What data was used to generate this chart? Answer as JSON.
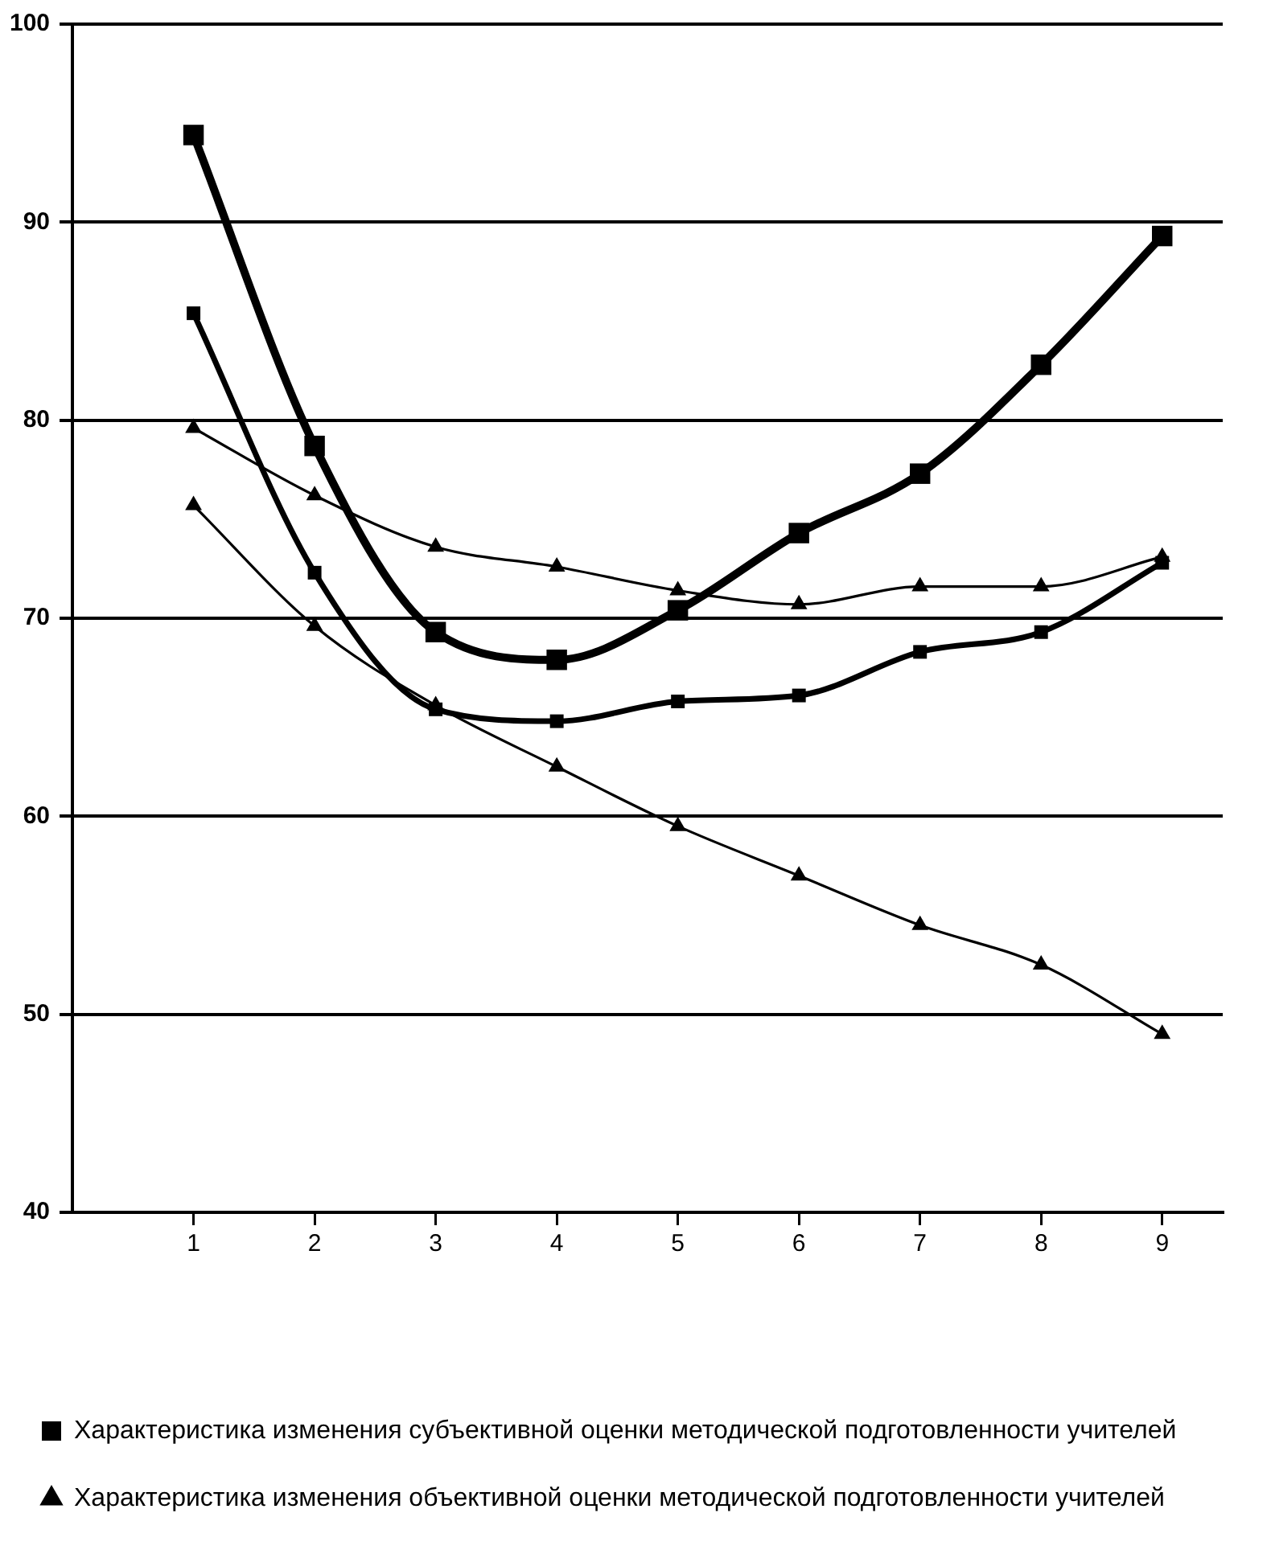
{
  "chart_data": {
    "type": "line",
    "x": [
      1,
      2,
      3,
      4,
      5,
      6,
      7,
      8,
      9
    ],
    "xlim": [
      0,
      9.5
    ],
    "xticks": [
      1,
      2,
      3,
      4,
      5,
      6,
      7,
      8,
      9
    ],
    "ylim": [
      40,
      100
    ],
    "yticks": [
      40,
      50,
      60,
      70,
      80,
      90,
      100
    ],
    "grid": "y",
    "legend": "bottom",
    "marker": "square",
    "line_style": "solid",
    "series": [
      {
        "name": "Характеристика изменения субъективной оценки методической подготовленности учителей",
        "color": "#000000",
        "values": [
          94.4,
          78.7,
          69.3,
          67.9,
          70.4,
          74.3,
          77.3,
          82.8,
          89.3
        ]
      },
      {
        "color": "#000000",
        "values": [
          85.4,
          72.3,
          65.4,
          64.8,
          65.8,
          66.1,
          68.3,
          69.3,
          72.8
        ]
      },
      {
        "name": "Характеристика изменения объективной оценки методической подготовленности учителей",
        "color": "#000000",
        "marker": "triangle",
        "values": [
          79.6,
          76.2,
          73.6,
          72.6,
          71.4,
          70.7,
          71.6,
          71.6,
          73.1
        ]
      },
      {
        "color": "#000000",
        "marker": "triangle",
        "values": [
          75.7,
          69.6,
          65.6,
          62.5,
          59.5,
          57.0,
          54.5,
          52.5,
          49.0
        ]
      }
    ]
  }
}
